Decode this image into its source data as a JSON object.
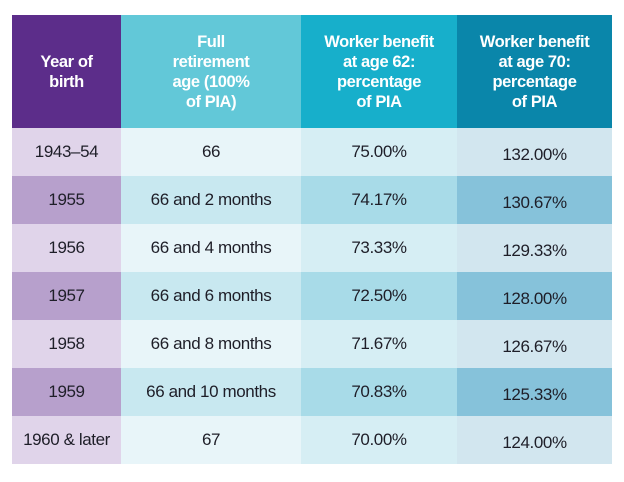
{
  "chart_data": {
    "type": "table",
    "columns": [
      "Year of birth",
      "Full retirement age (100% of PIA)",
      "Worker benefit at age 62: percentage of PIA",
      "Worker benefit at age 70: percentage of PIA"
    ],
    "rows": [
      [
        "1943–54",
        "66",
        "75.00%",
        "132.00%"
      ],
      [
        "1955",
        "66 and 2 months",
        "74.17%",
        "130.67%"
      ],
      [
        "1956",
        "66 and 4 months",
        "73.33%",
        "129.33%"
      ],
      [
        "1957",
        "66 and 6 months",
        "72.50%",
        "128.00%"
      ],
      [
        "1958",
        "66 and 8 months",
        "71.67%",
        "126.67%"
      ],
      [
        "1959",
        "66 and 10 months",
        "70.83%",
        "125.33%"
      ],
      [
        "1960 & later",
        "67",
        "70.00%",
        "124.00%"
      ]
    ],
    "header_lines": [
      [
        "Year of",
        "birth"
      ],
      [
        "Full",
        "retirement",
        "age (100%",
        "of PIA)"
      ],
      [
        "Worker benefit",
        "at age 62:",
        "percentage",
        "of PIA"
      ],
      [
        "Worker benefit",
        "at age 70:",
        "percentage",
        "of PIA"
      ]
    ],
    "colors": {
      "header": [
        "#5c2d8a",
        "#62c8d8",
        "#17afcb",
        "#0a86aa"
      ],
      "row_light": [
        "#e0d4ea",
        "#e8f5f9",
        "#d6eef4",
        "#d2e6ef"
      ],
      "row_dark": [
        "#b7a0cc",
        "#c8e8f0",
        "#a8dbe8",
        "#86c2da"
      ]
    }
  }
}
